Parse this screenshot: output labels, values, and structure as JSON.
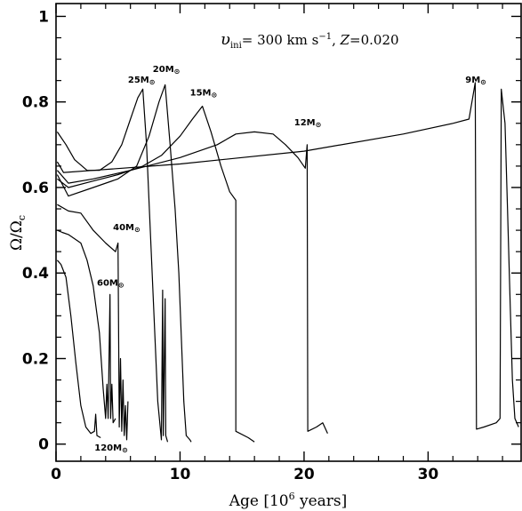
{
  "chart_data": {
    "type": "line",
    "xlabel": "Age [10",
    "xlabel_exp": "6",
    "xlabel_tail": " years]",
    "ylabel": "Ω/Ω",
    "ylabel_sub": "c",
    "xlim": [
      0,
      37.5
    ],
    "ylim": [
      -0.04,
      1.03
    ],
    "xticks": [
      0,
      10,
      20,
      30
    ],
    "yticks": [
      0,
      0.2,
      0.4,
      0.6,
      0.8,
      1
    ],
    "xtick_labels": [
      "0",
      "10",
      "20",
      "30"
    ],
    "ytick_labels": [
      "0",
      "0.2",
      "0.4",
      "0.6",
      "0.8",
      "1"
    ],
    "annotation": {
      "v": "υ",
      "v_sub": "ini",
      "eq": "= 300 km s",
      "exp": "−1",
      "z_part": ", ",
      "z": "Z",
      "z_value": "=0.020"
    },
    "series": [
      {
        "name": "9M",
        "suffix": "⊙",
        "label_pos": [
          33.0,
          0.845
        ],
        "points": [
          [
            0.1,
            0.66
          ],
          [
            0.6,
            0.635
          ],
          [
            3,
            0.64
          ],
          [
            10,
            0.655
          ],
          [
            20,
            0.685
          ],
          [
            28,
            0.725
          ],
          [
            32,
            0.75
          ],
          [
            33.3,
            0.76
          ],
          [
            33.8,
            0.845
          ],
          [
            33.9,
            0.035
          ],
          [
            34.5,
            0.04
          ],
          [
            35.5,
            0.05
          ],
          [
            35.8,
            0.06
          ],
          [
            35.9,
            0.83
          ],
          [
            36.2,
            0.75
          ],
          [
            36.4,
            0.55
          ],
          [
            36.6,
            0.35
          ],
          [
            36.8,
            0.15
          ],
          [
            37.0,
            0.06
          ],
          [
            37.3,
            0.04
          ]
        ]
      },
      {
        "name": "12M",
        "suffix": "⊙",
        "label_pos": [
          19.2,
          0.745
        ],
        "points": [
          [
            0.1,
            0.64
          ],
          [
            1,
            0.61
          ],
          [
            3,
            0.62
          ],
          [
            6,
            0.64
          ],
          [
            10,
            0.67
          ],
          [
            13,
            0.7
          ],
          [
            14.5,
            0.725
          ],
          [
            16,
            0.73
          ],
          [
            17.5,
            0.725
          ],
          [
            18.5,
            0.7
          ],
          [
            19.5,
            0.67
          ],
          [
            20.1,
            0.645
          ],
          [
            20.25,
            0.7
          ],
          [
            20.3,
            0.03
          ],
          [
            21,
            0.04
          ],
          [
            21.5,
            0.05
          ],
          [
            21.9,
            0.025
          ]
        ]
      },
      {
        "name": "15M",
        "suffix": "⊙",
        "label_pos": [
          10.8,
          0.815
        ],
        "points": [
          [
            0.1,
            0.62
          ],
          [
            1,
            0.6
          ],
          [
            3,
            0.615
          ],
          [
            5,
            0.63
          ],
          [
            7,
            0.65
          ],
          [
            8.5,
            0.675
          ],
          [
            10,
            0.72
          ],
          [
            11,
            0.76
          ],
          [
            11.8,
            0.79
          ],
          [
            12.5,
            0.73
          ],
          [
            13.3,
            0.65
          ],
          [
            14.0,
            0.59
          ],
          [
            14.5,
            0.57
          ],
          [
            14.5,
            0.03
          ],
          [
            15.5,
            0.015
          ],
          [
            16,
            0.005
          ]
        ]
      },
      {
        "name": "20M",
        "suffix": "⊙",
        "label_pos": [
          7.8,
          0.87
        ],
        "points": [
          [
            0.1,
            0.63
          ],
          [
            1,
            0.58
          ],
          [
            3,
            0.6
          ],
          [
            5,
            0.62
          ],
          [
            6.5,
            0.65
          ],
          [
            7.5,
            0.72
          ],
          [
            8.3,
            0.8
          ],
          [
            8.8,
            0.84
          ],
          [
            9.2,
            0.7
          ],
          [
            9.6,
            0.55
          ],
          [
            9.9,
            0.4
          ],
          [
            10.1,
            0.25
          ],
          [
            10.3,
            0.1
          ],
          [
            10.5,
            0.02
          ],
          [
            10.8,
            0.01
          ],
          [
            10.9,
            0.005
          ]
        ]
      },
      {
        "name": "25M",
        "suffix": "⊙",
        "label_pos": [
          5.8,
          0.845
        ],
        "points": [
          [
            0.1,
            0.73
          ],
          [
            0.8,
            0.7
          ],
          [
            1.5,
            0.665
          ],
          [
            2.5,
            0.64
          ],
          [
            3.5,
            0.64
          ],
          [
            4.5,
            0.66
          ],
          [
            5.3,
            0.7
          ],
          [
            6.0,
            0.76
          ],
          [
            6.6,
            0.81
          ],
          [
            7.0,
            0.83
          ],
          [
            7.3,
            0.7
          ],
          [
            7.6,
            0.5
          ],
          [
            7.9,
            0.3
          ],
          [
            8.2,
            0.1
          ],
          [
            8.5,
            0.01
          ],
          [
            8.6,
            0.36
          ],
          [
            8.65,
            0.02
          ],
          [
            8.8,
            0.34
          ],
          [
            8.85,
            0.02
          ],
          [
            9.0,
            0.005
          ]
        ]
      },
      {
        "name": "40M",
        "suffix": "⊙",
        "label_pos": [
          4.6,
          0.5
        ],
        "points": [
          [
            0.1,
            0.56
          ],
          [
            1,
            0.545
          ],
          [
            2,
            0.54
          ],
          [
            3,
            0.5
          ],
          [
            4,
            0.47
          ],
          [
            4.8,
            0.45
          ],
          [
            5.0,
            0.47
          ],
          [
            5.1,
            0.04
          ],
          [
            5.2,
            0.2
          ],
          [
            5.3,
            0.03
          ],
          [
            5.4,
            0.15
          ],
          [
            5.5,
            0.02
          ],
          [
            5.6,
            0.09
          ],
          [
            5.7,
            0.01
          ],
          [
            5.8,
            0.1
          ]
        ]
      },
      {
        "name": "60M",
        "suffix": "⊙",
        "label_pos": [
          3.3,
          0.37
        ],
        "points": [
          [
            0.1,
            0.5
          ],
          [
            0.5,
            0.495
          ],
          [
            1.0,
            0.49
          ],
          [
            2.0,
            0.47
          ],
          [
            2.5,
            0.43
          ],
          [
            3.0,
            0.37
          ],
          [
            3.5,
            0.26
          ],
          [
            3.8,
            0.13
          ],
          [
            4.0,
            0.06
          ],
          [
            4.1,
            0.14
          ],
          [
            4.2,
            0.06
          ],
          [
            4.35,
            0.35
          ],
          [
            4.4,
            0.06
          ],
          [
            4.5,
            0.14
          ],
          [
            4.6,
            0.05
          ],
          [
            4.8,
            0.06
          ]
        ]
      },
      {
        "name": "120M",
        "suffix": "⊙",
        "label_pos": [
          3.1,
          -0.015
        ],
        "points": [
          [
            0.1,
            0.43
          ],
          [
            0.4,
            0.42
          ],
          [
            0.8,
            0.39
          ],
          [
            1.2,
            0.3
          ],
          [
            1.6,
            0.19
          ],
          [
            2.0,
            0.09
          ],
          [
            2.4,
            0.04
          ],
          [
            2.8,
            0.025
          ],
          [
            3.1,
            0.03
          ],
          [
            3.2,
            0.07
          ],
          [
            3.3,
            0.02
          ],
          [
            3.6,
            0.015
          ]
        ]
      }
    ]
  }
}
